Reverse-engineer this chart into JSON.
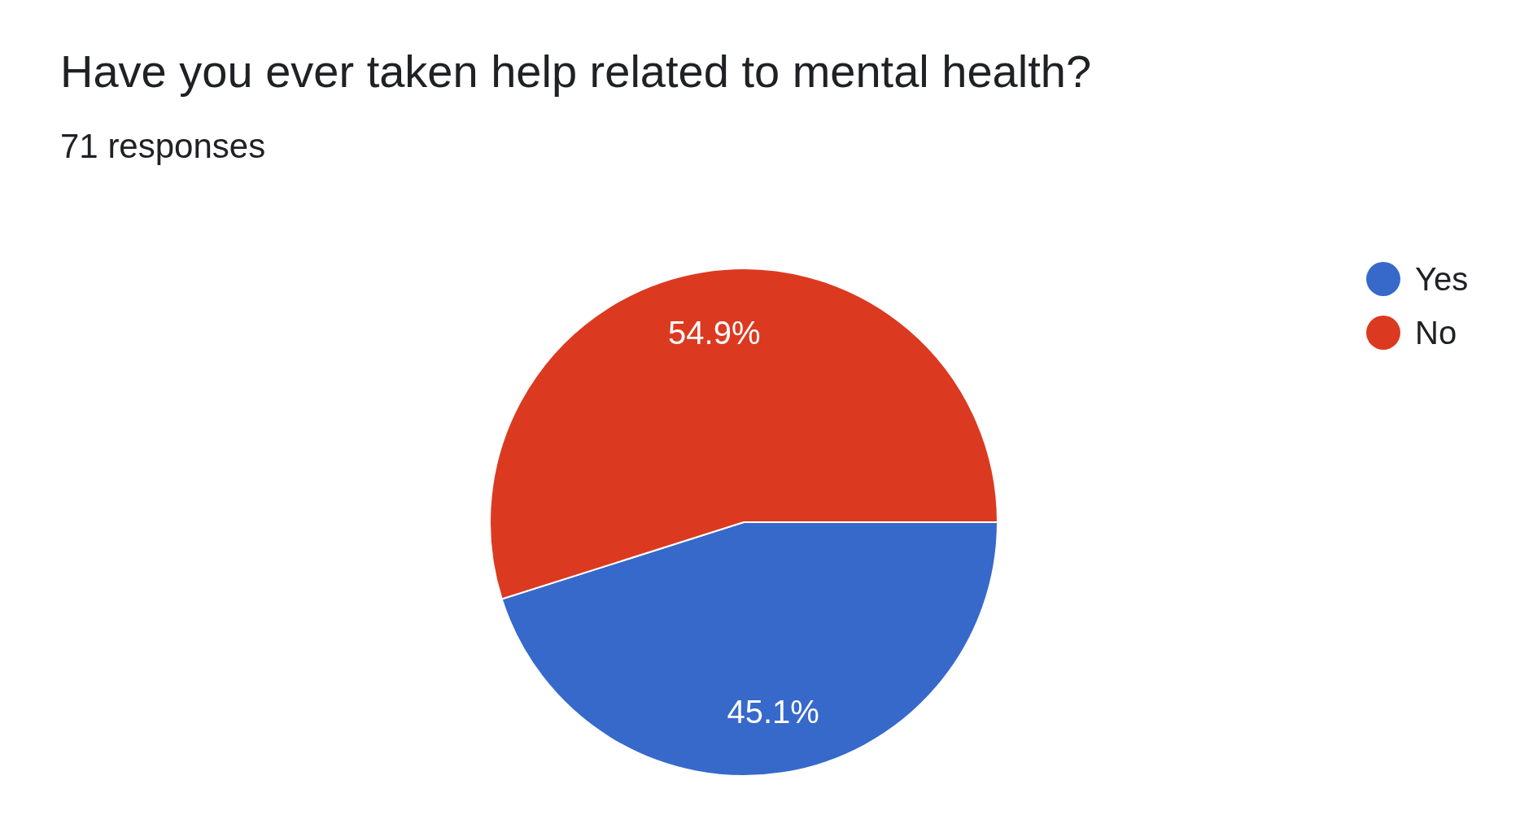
{
  "chart_data": {
    "type": "pie",
    "title": "Have you ever taken help related to mental health?",
    "subtitle": "71 responses",
    "categories": [
      "Yes",
      "No"
    ],
    "values": [
      45.1,
      54.9
    ],
    "colors": [
      "#3769cb",
      "#db3a21"
    ],
    "value_labels": [
      "45.1%",
      "54.9%"
    ],
    "legend": "right"
  }
}
